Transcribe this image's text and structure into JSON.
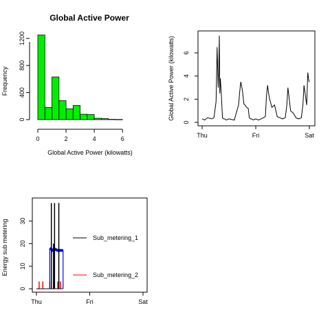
{
  "chart_data": [
    {
      "type": "bar",
      "title": "Global Active Power",
      "xlabel": "Global Active Power (kilowatts)",
      "ylabel": "Frequency",
      "xlim": [
        0,
        7.5
      ],
      "ylim": [
        0,
        1300
      ],
      "bar_color": "#00ee00",
      "bin_width": 0.5,
      "bin_starts": [
        0,
        0.5,
        1,
        1.5,
        2,
        2.5,
        3,
        3.5,
        4,
        4.5,
        5,
        5.5
      ],
      "values": [
        1250,
        180,
        630,
        280,
        160,
        210,
        80,
        75,
        20,
        15,
        5,
        3
      ],
      "x_ticks": [
        0,
        2,
        4,
        6
      ],
      "x_tick_labels": [
        "0",
        "2",
        "4",
        "6"
      ],
      "y_ticks": [
        0,
        400,
        800,
        1200
      ],
      "y_tick_labels": [
        "0",
        "400",
        "800",
        "1200"
      ]
    },
    {
      "type": "line",
      "title": "",
      "xlabel": "",
      "ylabel": "Global Active Power (kilowatts)",
      "xlim": [
        0,
        2
      ],
      "ylim": [
        0,
        7.6
      ],
      "x_ticks": [
        0,
        1,
        2
      ],
      "x_tick_labels": [
        "Thu",
        "Fri",
        "Sat"
      ],
      "y_ticks": [
        0,
        2,
        4,
        6
      ],
      "y_tick_labels": [
        "0",
        "2",
        "4",
        "6"
      ],
      "series": [
        {
          "x": [
            0,
            0.05,
            0.1,
            0.18,
            0.22,
            0.26,
            0.28,
            0.3,
            0.31,
            0.32,
            0.33,
            0.34,
            0.35,
            0.36,
            0.38,
            0.4,
            0.42,
            0.45,
            0.5,
            0.6,
            0.68,
            0.7,
            0.72,
            0.75,
            0.78,
            0.8,
            0.83,
            0.86,
            0.88,
            0.9,
            0.92,
            0.95,
            1.0,
            1.05,
            1.1,
            1.18,
            1.2,
            1.22,
            1.24,
            1.26,
            1.3,
            1.35,
            1.4,
            1.45,
            1.5,
            1.55,
            1.58,
            1.6,
            1.65,
            1.7,
            1.75,
            1.8,
            1.85,
            1.88,
            1.9,
            1.92,
            1.95,
            1.97,
            1.99,
            2.0
          ],
          "y": [
            0.3,
            0.2,
            0.4,
            0.3,
            0.4,
            1.8,
            6.5,
            3.0,
            4.5,
            7.5,
            2.5,
            3.8,
            3.0,
            2.2,
            0.4,
            0.3,
            0.3,
            0.2,
            0.3,
            0.2,
            1.5,
            2.6,
            3.5,
            2.8,
            1.6,
            1.5,
            1.3,
            1.2,
            0.4,
            0.3,
            0.3,
            0.2,
            0.3,
            0.2,
            0.3,
            0.5,
            2.3,
            3.2,
            2.5,
            2.0,
            1.3,
            1.5,
            0.5,
            0.4,
            0.3,
            0.4,
            1.5,
            3.0,
            1.0,
            0.8,
            0.4,
            0.3,
            0.4,
            1.5,
            3.2,
            2.5,
            1.5,
            4.3,
            3.6,
            3.5
          ]
        }
      ]
    },
    {
      "type": "line",
      "title": "",
      "xlabel": "",
      "ylabel": "Energy sub metering",
      "xlim": [
        0,
        2
      ],
      "ylim": [
        0,
        39
      ],
      "x_ticks": [
        0,
        1,
        2
      ],
      "x_tick_labels": [
        "Thu",
        "Fri",
        "Sat"
      ],
      "y_ticks": [
        0,
        10,
        20,
        30
      ],
      "y_tick_labels": [
        "0",
        "10",
        "20",
        "30"
      ],
      "legend": [
        "Sub_metering_1",
        "Sub_metering_2"
      ],
      "legend_colors": [
        "#000000",
        "#ff0000"
      ],
      "series": [
        {
          "name": "Sub_metering_1",
          "color": "#000000",
          "x": [
            0.28,
            0.3,
            0.32,
            0.34,
            0.38,
            0.42
          ],
          "y": [
            38,
            0,
            20,
            38,
            0,
            38
          ]
        },
        {
          "name": "Sub_metering_2",
          "color": "#ff0000",
          "x": [
            0.05,
            0.12,
            0.25,
            0.33,
            0.4,
            0.45
          ],
          "y": [
            2,
            2,
            2,
            2,
            2,
            2
          ]
        },
        {
          "name": "",
          "color": "#0000ff",
          "x": [
            0.25,
            0.28,
            0.3,
            0.35,
            0.4,
            0.45,
            0.5
          ],
          "y": [
            18,
            17.5,
            17,
            17.5,
            17,
            17,
            17
          ]
        }
      ]
    }
  ]
}
